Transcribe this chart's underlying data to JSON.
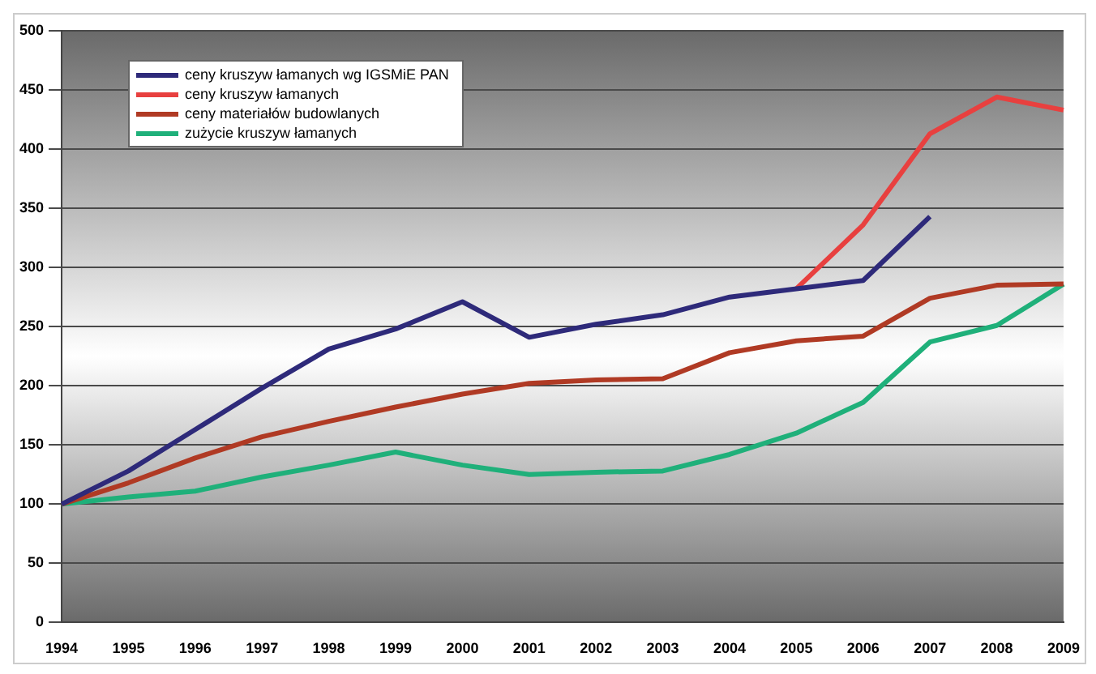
{
  "chart_data": {
    "type": "line",
    "categories": [
      "1994",
      "1995",
      "1996",
      "1997",
      "1998",
      "1999",
      "2000",
      "2001",
      "2002",
      "2003",
      "2004",
      "2005",
      "2006",
      "2007",
      "2008",
      "2009"
    ],
    "series": [
      {
        "name": "ceny kruszyw łamanych wg IGSMiE PAN",
        "color": "#2e2a7a",
        "values": [
          100,
          128,
          163,
          198,
          231,
          248,
          271,
          241,
          252,
          260,
          275,
          282,
          289,
          343,
          null,
          null
        ]
      },
      {
        "name": "ceny kruszyw łamanych",
        "color": "#e8403f",
        "values": [
          null,
          null,
          null,
          null,
          null,
          null,
          null,
          null,
          null,
          null,
          null,
          282,
          336,
          413,
          444,
          433
        ]
      },
      {
        "name": "ceny materiałów budowlanych",
        "color": "#b03a24",
        "values": [
          100,
          118,
          139,
          157,
          170,
          182,
          193,
          202,
          205,
          206,
          228,
          238,
          242,
          274,
          285,
          286
        ]
      },
      {
        "name": "zużycie kruszyw łamanych",
        "color": "#1fb07a",
        "values": [
          100,
          106,
          111,
          123,
          133,
          144,
          133,
          125,
          127,
          128,
          142,
          160,
          186,
          237,
          251,
          286
        ]
      }
    ],
    "ylim": [
      0,
      500
    ],
    "yticks": [
      0,
      50,
      100,
      150,
      200,
      250,
      300,
      350,
      400,
      450,
      500
    ],
    "grid": "y",
    "legend": "top left",
    "marker": "none",
    "line_style": "solid"
  }
}
